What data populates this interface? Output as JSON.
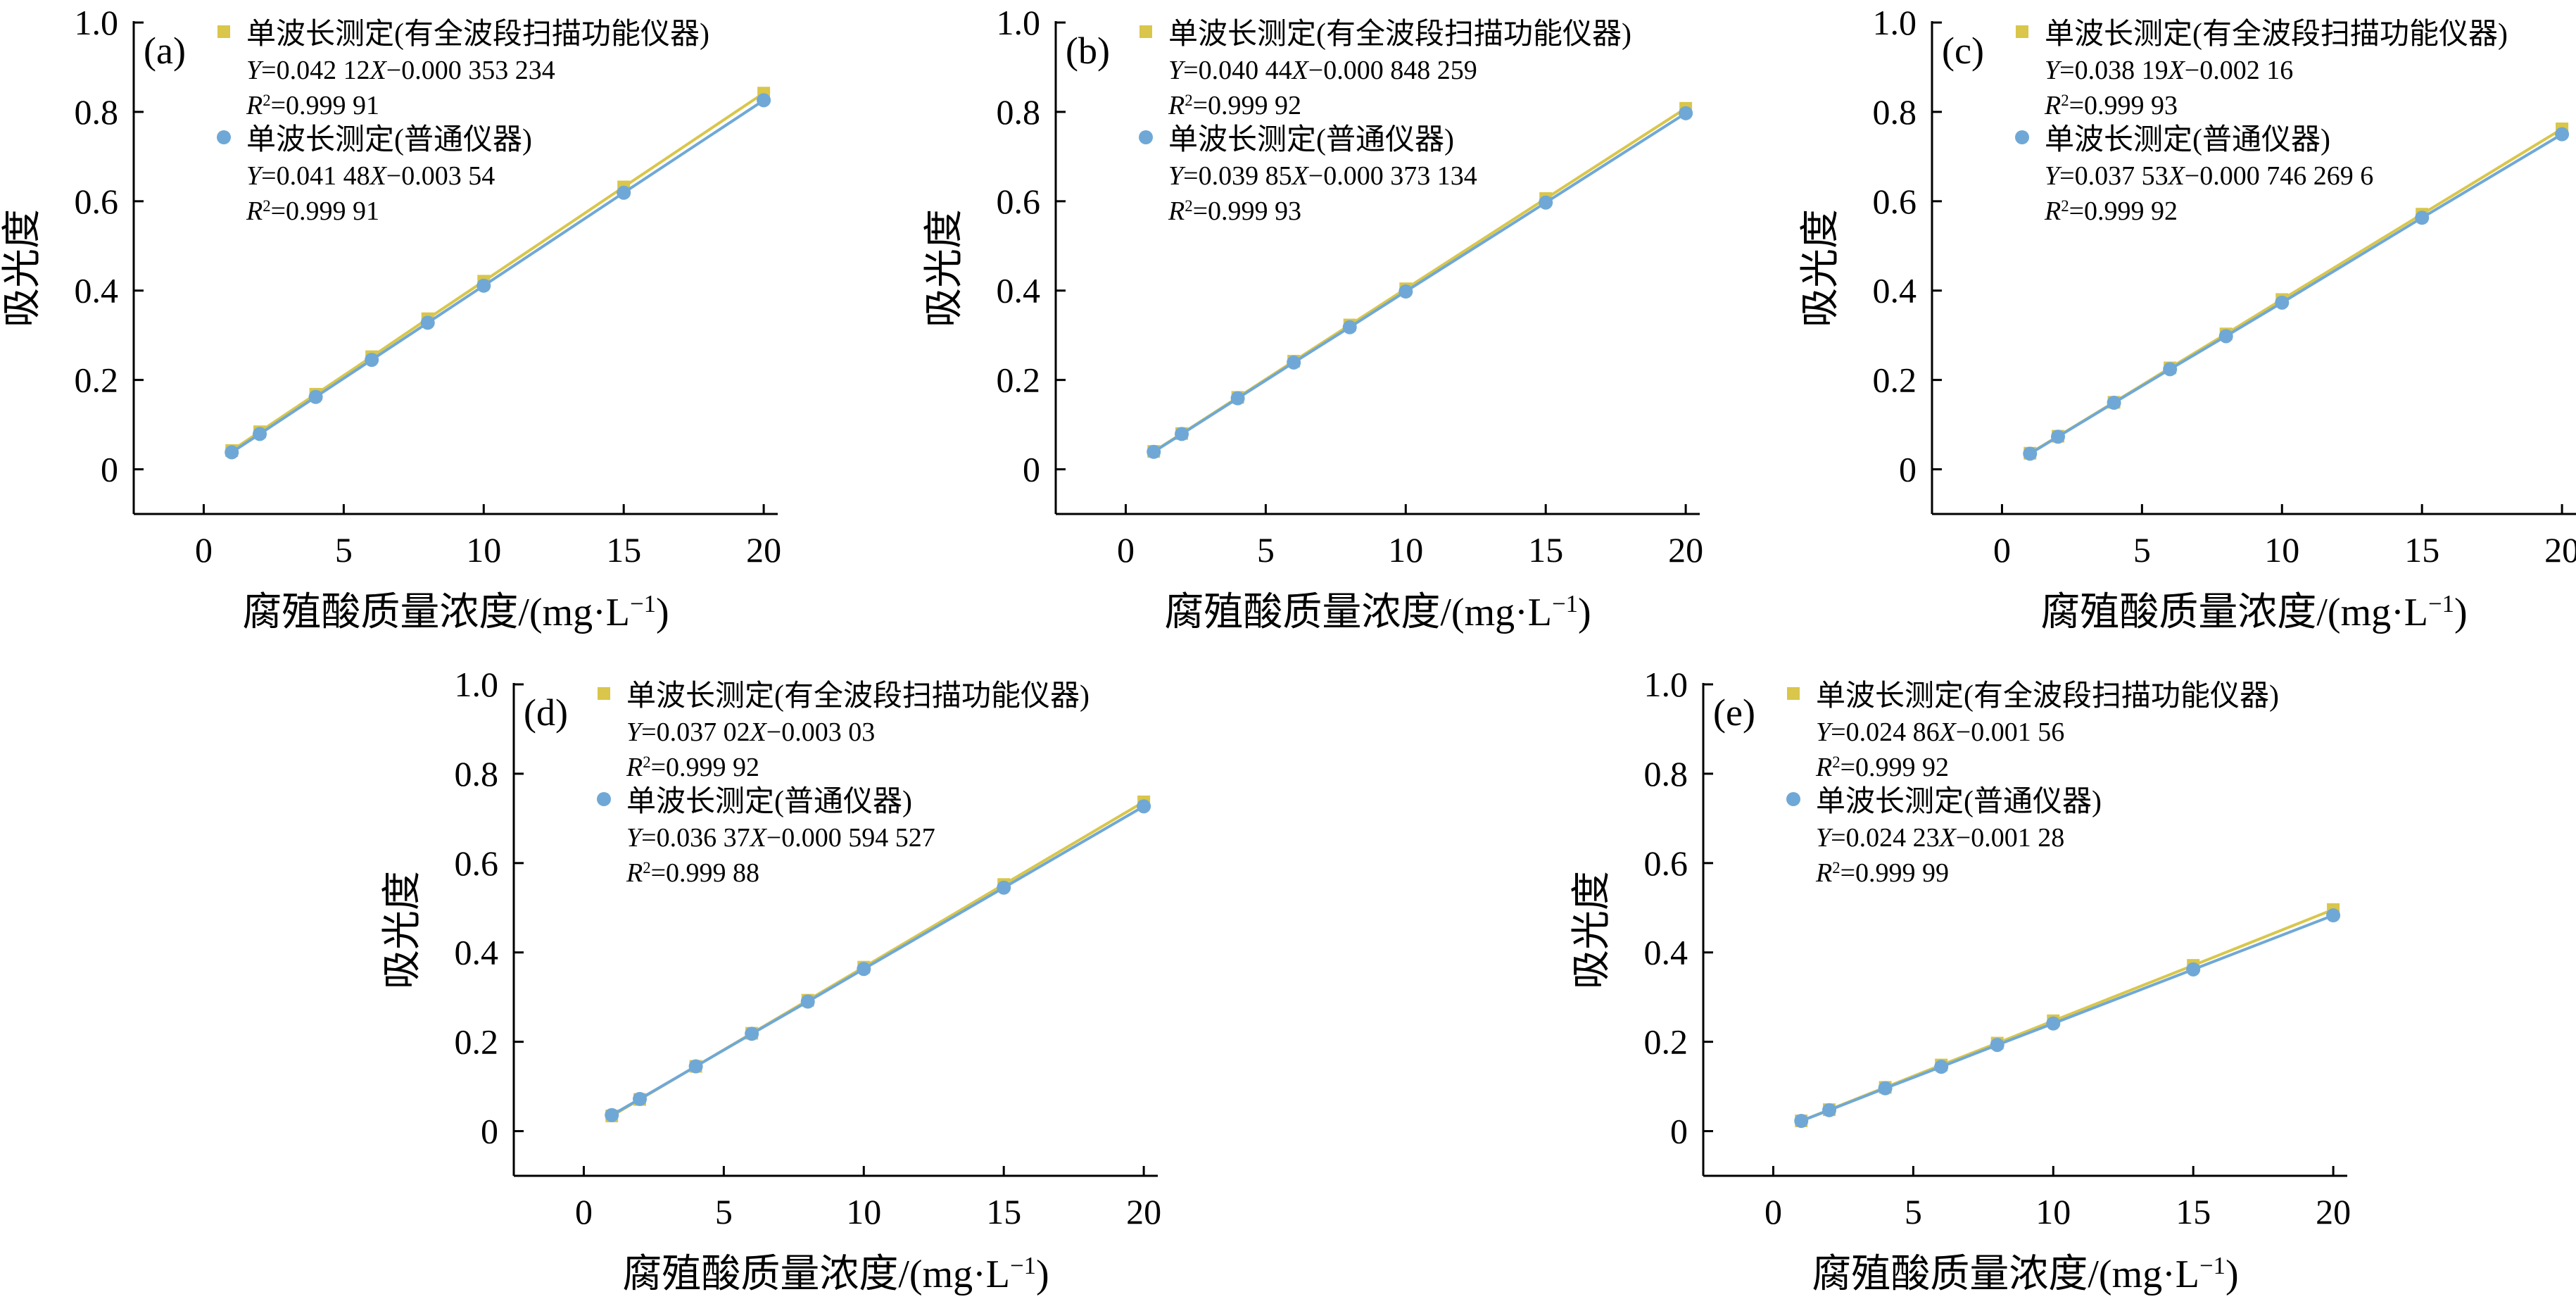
{
  "colors": {
    "series_full_scan": "#d9c64a",
    "series_ordinary": "#6fa8d6",
    "axis": "#000000"
  },
  "chart_data": [
    {
      "type": "scatter",
      "panel_label": "(a)",
      "xlabel": "腐殖酸质量浓度/(mg·L⁻¹)",
      "ylabel": "吸光度",
      "xlim": [
        -2.5,
        20.5
      ],
      "ylim": [
        -0.1,
        1.0
      ],
      "xticks": [
        0,
        5,
        10,
        15,
        20
      ],
      "yticks": [
        0,
        0.2,
        0.4,
        0.6,
        0.8,
        1.0
      ],
      "xtick_labels": [
        "0",
        "5",
        "10",
        "15",
        "20"
      ],
      "ytick_labels": [
        "0",
        "0.2",
        "0.4",
        "0.6",
        "0.8",
        "1.0"
      ],
      "grid": false,
      "legend_position": "top-left",
      "series": [
        {
          "name": "单波长测定(有全波段扫描功能仪器)",
          "marker": "square",
          "color": "#d9c64a",
          "equation": "Y=0.042 12X−0.000 353 234",
          "r2": "R²=0.999 91",
          "x": [
            1,
            2,
            4,
            6,
            8,
            10,
            15,
            20
          ],
          "y": [
            0.042,
            0.084,
            0.168,
            0.252,
            0.337,
            0.421,
            0.632,
            0.842
          ]
        },
        {
          "name": "单波长测定(普通仪器)",
          "marker": "circle",
          "color": "#6fa8d6",
          "equation": "Y=0.041 48X−0.003 54",
          "r2": "R²=0.999 91",
          "x": [
            1,
            2,
            4,
            6,
            8,
            10,
            15,
            20
          ],
          "y": [
            0.038,
            0.079,
            0.162,
            0.245,
            0.328,
            0.411,
            0.619,
            0.826
          ]
        }
      ]
    },
    {
      "type": "scatter",
      "panel_label": "(b)",
      "xlabel": "腐殖酸质量浓度/(mg·L⁻¹)",
      "ylabel": "吸光度",
      "xlim": [
        -2.5,
        20.5
      ],
      "ylim": [
        -0.1,
        1.0
      ],
      "xticks": [
        0,
        5,
        10,
        15,
        20
      ],
      "yticks": [
        0,
        0.2,
        0.4,
        0.6,
        0.8,
        1.0
      ],
      "xtick_labels": [
        "0",
        "5",
        "10",
        "15",
        "20"
      ],
      "ytick_labels": [
        "0",
        "0.2",
        "0.4",
        "0.6",
        "0.8",
        "1.0"
      ],
      "grid": false,
      "legend_position": "top-left",
      "series": [
        {
          "name": "单波长测定(有全波段扫描功能仪器)",
          "marker": "square",
          "color": "#d9c64a",
          "equation": "Y=0.040 44X−0.000 848 259",
          "r2": "R²=0.999 92",
          "x": [
            1,
            2,
            4,
            6,
            8,
            10,
            15,
            20
          ],
          "y": [
            0.04,
            0.08,
            0.161,
            0.242,
            0.323,
            0.404,
            0.606,
            0.808
          ]
        },
        {
          "name": "单波长测定(普通仪器)",
          "marker": "circle",
          "color": "#6fa8d6",
          "equation": "Y=0.039 85X−0.000 373 134",
          "r2": "R²=0.999 93",
          "x": [
            1,
            2,
            4,
            6,
            8,
            10,
            15,
            20
          ],
          "y": [
            0.039,
            0.079,
            0.159,
            0.239,
            0.318,
            0.398,
            0.597,
            0.797
          ]
        }
      ]
    },
    {
      "type": "scatter",
      "panel_label": "(c)",
      "xlabel": "腐殖酸质量浓度/(mg·L⁻¹)",
      "ylabel": "吸光度",
      "xlim": [
        -2.5,
        20.5
      ],
      "ylim": [
        -0.1,
        1.0
      ],
      "xticks": [
        0,
        5,
        10,
        15,
        20
      ],
      "yticks": [
        0,
        0.2,
        0.4,
        0.6,
        0.8,
        1.0
      ],
      "xtick_labels": [
        "0",
        "5",
        "10",
        "15",
        "20"
      ],
      "ytick_labels": [
        "0",
        "0.2",
        "0.4",
        "0.6",
        "0.8",
        "1.0"
      ],
      "grid": false,
      "legend_position": "top-left",
      "series": [
        {
          "name": "单波长测定(有全波段扫描功能仪器)",
          "marker": "square",
          "color": "#d9c64a",
          "equation": "Y=0.038 19X−0.002 16",
          "r2": "R²=0.999 93",
          "x": [
            1,
            2,
            4,
            6,
            8,
            10,
            15,
            20
          ],
          "y": [
            0.036,
            0.074,
            0.15,
            0.227,
            0.303,
            0.38,
            0.571,
            0.762
          ]
        },
        {
          "name": "单波长测定(普通仪器)",
          "marker": "circle",
          "color": "#6fa8d6",
          "equation": "Y=0.037 53X−0.000 746 269 6",
          "r2": "R²=0.999 92",
          "x": [
            1,
            2,
            4,
            6,
            8,
            10,
            15,
            20
          ],
          "y": [
            0.035,
            0.073,
            0.149,
            0.224,
            0.298,
            0.373,
            0.563,
            0.75
          ]
        }
      ]
    },
    {
      "type": "scatter",
      "panel_label": "(d)",
      "xlabel": "腐殖酸质量浓度/(mg·L⁻¹)",
      "ylabel": "吸光度",
      "xlim": [
        -2.5,
        20.5
      ],
      "ylim": [
        -0.1,
        1.0
      ],
      "xticks": [
        0,
        5,
        10,
        15,
        20
      ],
      "yticks": [
        0,
        0.2,
        0.4,
        0.6,
        0.8,
        1.0
      ],
      "xtick_labels": [
        "0",
        "5",
        "10",
        "15",
        "20"
      ],
      "ytick_labels": [
        "0",
        "0.2",
        "0.4",
        "0.6",
        "0.8",
        "1.0"
      ],
      "grid": false,
      "legend_position": "top-left",
      "series": [
        {
          "name": "单波长测定(有全波段扫描功能仪器)",
          "marker": "square",
          "color": "#d9c64a",
          "equation": "Y=0.037 02X−0.003 03",
          "r2": "R²=0.999 92",
          "x": [
            1,
            2,
            4,
            6,
            8,
            10,
            15,
            20
          ],
          "y": [
            0.034,
            0.071,
            0.145,
            0.219,
            0.293,
            0.367,
            0.552,
            0.737
          ]
        },
        {
          "name": "单波长测定(普通仪器)",
          "marker": "circle",
          "color": "#6fa8d6",
          "equation": "Y=0.036 37X−0.000 594 527",
          "r2": "R²=0.999 88",
          "x": [
            1,
            2,
            4,
            6,
            8,
            10,
            15,
            20
          ],
          "y": [
            0.036,
            0.072,
            0.145,
            0.218,
            0.29,
            0.363,
            0.545,
            0.727
          ]
        }
      ]
    },
    {
      "type": "scatter",
      "panel_label": "(e)",
      "xlabel": "腐殖酸质量浓度/(mg·L⁻¹)",
      "ylabel": "吸光度",
      "xlim": [
        -2.5,
        20.5
      ],
      "ylim": [
        -0.1,
        1.0
      ],
      "xticks": [
        0,
        5,
        10,
        15,
        20
      ],
      "yticks": [
        0,
        0.2,
        0.4,
        0.6,
        0.8,
        1.0
      ],
      "xtick_labels": [
        "0",
        "5",
        "10",
        "15",
        "20"
      ],
      "ytick_labels": [
        "0",
        "0.2",
        "0.4",
        "0.6",
        "0.8",
        "1.0"
      ],
      "grid": false,
      "legend_position": "top-left",
      "series": [
        {
          "name": "单波长测定(有全波段扫描功能仪器)",
          "marker": "square",
          "color": "#d9c64a",
          "equation": "Y=0.024 86X−0.001 56",
          "r2": "R²=0.999 92",
          "x": [
            1,
            2,
            4,
            6,
            8,
            10,
            15,
            20
          ],
          "y": [
            0.023,
            0.048,
            0.098,
            0.148,
            0.197,
            0.247,
            0.371,
            0.496
          ]
        },
        {
          "name": "单波长测定(普通仪器)",
          "marker": "circle",
          "color": "#6fa8d6",
          "equation": "Y=0.024 23X−0.001 28",
          "r2": "R²=0.999 99",
          "x": [
            1,
            2,
            4,
            6,
            8,
            10,
            15,
            20
          ],
          "y": [
            0.023,
            0.047,
            0.096,
            0.144,
            0.193,
            0.241,
            0.362,
            0.483
          ]
        }
      ]
    }
  ]
}
